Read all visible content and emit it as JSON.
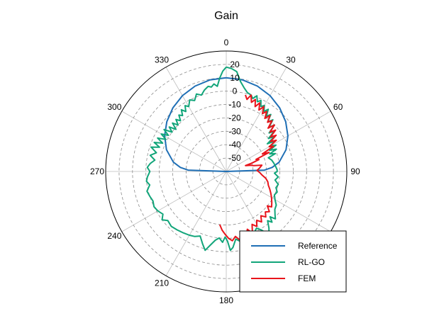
{
  "chart_data": {
    "type": "polar-line",
    "title": "Gain",
    "theta_zero": "top",
    "theta_direction": "clockwise",
    "theta_ticks": [
      0,
      30,
      60,
      90,
      120,
      150,
      180,
      210,
      240,
      270,
      300,
      330
    ],
    "theta_tick_labels": [
      "0",
      "30",
      "60",
      "90",
      "",
      "",
      "180",
      "210",
      "240",
      "270",
      "300",
      "330"
    ],
    "r_ticks": [
      20,
      10,
      0,
      -10,
      -20,
      -30,
      -40,
      -50
    ],
    "r_tick_labels": [
      "20",
      "10",
      "0",
      "-10",
      "-20",
      "-30",
      "-40",
      "-50"
    ],
    "r_range": [
      -60,
      30
    ],
    "grid": true,
    "legend": {
      "position": "bottom-right",
      "entries": [
        "Reference",
        "RL-GO",
        "FEM"
      ]
    },
    "series": [
      {
        "name": "Reference",
        "color": "#1f6fb5",
        "points": [
          [
            0,
            10
          ],
          [
            10,
            9.5
          ],
          [
            20,
            7.9
          ],
          [
            30,
            5.4
          ],
          [
            40,
            2
          ],
          [
            50,
            -2.1
          ],
          [
            60,
            -6.9
          ],
          [
            70,
            -12.5
          ],
          [
            80,
            -19.9
          ],
          [
            85,
            -25.6
          ],
          [
            88,
            -31.5
          ],
          [
            90,
            -60
          ],
          [
            270,
            -60
          ],
          [
            272,
            -31.5
          ],
          [
            275,
            -25.6
          ],
          [
            280,
            -19.9
          ],
          [
            290,
            -12.5
          ],
          [
            300,
            -6.9
          ],
          [
            310,
            -2.1
          ],
          [
            320,
            2
          ],
          [
            330,
            5.4
          ],
          [
            340,
            7.9
          ],
          [
            350,
            9.5
          ],
          [
            360,
            10
          ]
        ]
      },
      {
        "name": "RL-GO",
        "color": "#12a57a",
        "points": [
          [
            0,
            18
          ],
          [
            3,
            17
          ],
          [
            6,
            15
          ],
          [
            9,
            8
          ],
          [
            12,
            4
          ],
          [
            15,
            1
          ],
          [
            18,
            0
          ],
          [
            20,
            -2
          ],
          [
            22,
            1
          ],
          [
            24,
            -3
          ],
          [
            26,
            -1
          ],
          [
            28,
            -5
          ],
          [
            30,
            -3
          ],
          [
            32,
            -7
          ],
          [
            34,
            -4
          ],
          [
            36,
            -9
          ],
          [
            38,
            -6
          ],
          [
            40,
            -12
          ],
          [
            42,
            -8
          ],
          [
            44,
            -14
          ],
          [
            46,
            -10
          ],
          [
            48,
            -17
          ],
          [
            50,
            -13
          ],
          [
            52,
            -20
          ],
          [
            54,
            -15
          ],
          [
            56,
            -23
          ],
          [
            58,
            -17
          ],
          [
            60,
            -22
          ],
          [
            62,
            -18
          ],
          [
            64,
            -24
          ],
          [
            66,
            -19
          ],
          [
            68,
            -25
          ],
          [
            70,
            -21
          ],
          [
            72,
            -27
          ],
          [
            76,
            -25
          ],
          [
            80,
            -24
          ],
          [
            84,
            -23
          ],
          [
            88,
            -22
          ],
          [
            90,
            -22
          ],
          [
            92,
            -24
          ],
          [
            96,
            -21
          ],
          [
            100,
            -23
          ],
          [
            104,
            -20
          ],
          [
            108,
            -21
          ],
          [
            112,
            -19
          ],
          [
            116,
            -20
          ],
          [
            120,
            -18
          ],
          [
            124,
            -15
          ],
          [
            128,
            -14
          ],
          [
            132,
            -11
          ],
          [
            134,
            -9
          ],
          [
            136,
            -13
          ],
          [
            138,
            -9
          ],
          [
            140,
            -12
          ],
          [
            143,
            -7
          ],
          [
            146,
            -3
          ],
          [
            149,
            -9
          ],
          [
            152,
            -12
          ],
          [
            155,
            -10
          ],
          [
            158,
            -6
          ],
          [
            160,
            -12
          ],
          [
            163,
            -10
          ],
          [
            166,
            -4
          ],
          [
            169,
            -7
          ],
          [
            172,
            -9
          ],
          [
            175,
            -3
          ],
          [
            177,
            -1
          ],
          [
            179,
            -8
          ],
          [
            181,
            -11
          ],
          [
            183,
            -7
          ],
          [
            186,
            -10
          ],
          [
            189,
            -8
          ],
          [
            192,
            -4
          ],
          [
            195,
            1
          ],
          [
            198,
            -3
          ],
          [
            202,
            -8
          ],
          [
            206,
            -6
          ],
          [
            210,
            -5
          ],
          [
            215,
            -4
          ],
          [
            220,
            -3
          ],
          [
            225,
            -2
          ],
          [
            230,
            -3
          ],
          [
            233,
            0
          ],
          [
            236,
            -3
          ],
          [
            240,
            -1
          ],
          [
            244,
            0
          ],
          [
            248,
            -1
          ],
          [
            252,
            0
          ],
          [
            256,
            1
          ],
          [
            260,
            -2
          ],
          [
            263,
            0
          ],
          [
            266,
            -1
          ],
          [
            270,
            -3
          ],
          [
            273,
            -1
          ],
          [
            276,
            -3
          ],
          [
            279,
            -6
          ],
          [
            282,
            -2
          ],
          [
            285,
            -6
          ],
          [
            288,
            -1
          ],
          [
            290,
            -7
          ],
          [
            292,
            -2
          ],
          [
            294,
            -8
          ],
          [
            296,
            -3
          ],
          [
            298,
            -9
          ],
          [
            300,
            -4
          ],
          [
            302,
            -9
          ],
          [
            304,
            -4
          ],
          [
            306,
            -10
          ],
          [
            308,
            -6
          ],
          [
            310,
            -11
          ],
          [
            312,
            -6
          ],
          [
            314,
            -10
          ],
          [
            316,
            -6
          ],
          [
            318,
            -9
          ],
          [
            320,
            -5
          ],
          [
            322,
            -7
          ],
          [
            324,
            -3
          ],
          [
            326,
            -6
          ],
          [
            328,
            -2
          ],
          [
            330,
            -4
          ],
          [
            333,
            0
          ],
          [
            336,
            -2
          ],
          [
            339,
            2
          ],
          [
            342,
            0
          ],
          [
            345,
            3
          ],
          [
            348,
            5
          ],
          [
            350,
            4
          ],
          [
            352,
            6
          ],
          [
            354,
            4
          ],
          [
            356,
            10
          ],
          [
            358,
            15
          ],
          [
            360,
            18
          ]
        ]
      },
      {
        "name": "FEM",
        "color": "#e8141b",
        "points": [
          [
            14,
            -1
          ],
          [
            16,
            -4
          ],
          [
            18,
            0
          ],
          [
            20,
            -5
          ],
          [
            22,
            -2
          ],
          [
            24,
            -7
          ],
          [
            26,
            -3
          ],
          [
            28,
            -8
          ],
          [
            30,
            -4
          ],
          [
            32,
            -9
          ],
          [
            34,
            -6
          ],
          [
            36,
            -11
          ],
          [
            38,
            -7
          ],
          [
            40,
            -12
          ],
          [
            42,
            -9
          ],
          [
            44,
            -15
          ],
          [
            46,
            -10
          ],
          [
            48,
            -16
          ],
          [
            50,
            -12
          ],
          [
            52,
            -18
          ],
          [
            54,
            -14
          ],
          [
            56,
            -20
          ],
          [
            58,
            -16
          ],
          [
            60,
            -23
          ],
          [
            62,
            -20
          ],
          [
            64,
            -30
          ],
          [
            66,
            -25
          ],
          [
            68,
            -36
          ],
          [
            70,
            -34
          ],
          [
            72,
            -40
          ],
          [
            73,
            -45
          ],
          [
            76,
            -41
          ],
          [
            78,
            -39
          ],
          [
            80,
            -33
          ],
          [
            84,
            -35
          ],
          [
            88,
            -37
          ],
          [
            92,
            -35
          ],
          [
            96,
            -33
          ],
          [
            100,
            -30
          ],
          [
            104,
            -28
          ],
          [
            108,
            -27
          ],
          [
            112,
            -25
          ],
          [
            116,
            -23
          ],
          [
            120,
            -21
          ],
          [
            124,
            -19
          ],
          [
            128,
            -17
          ],
          [
            130,
            -20
          ],
          [
            133,
            -16
          ],
          [
            136,
            -18
          ],
          [
            139,
            -15
          ],
          [
            142,
            -18
          ],
          [
            145,
            -14
          ],
          [
            148,
            -17
          ],
          [
            151,
            -13
          ],
          [
            154,
            -16
          ],
          [
            157,
            -10
          ],
          [
            160,
            -14
          ],
          [
            163,
            -9
          ],
          [
            166,
            -12
          ],
          [
            169,
            -8
          ],
          [
            172,
            -11
          ],
          [
            175,
            -8
          ],
          [
            178,
            -10
          ],
          [
            181,
            -13
          ],
          [
            184,
            -16
          ],
          [
            187,
            -20
          ]
        ]
      }
    ]
  }
}
